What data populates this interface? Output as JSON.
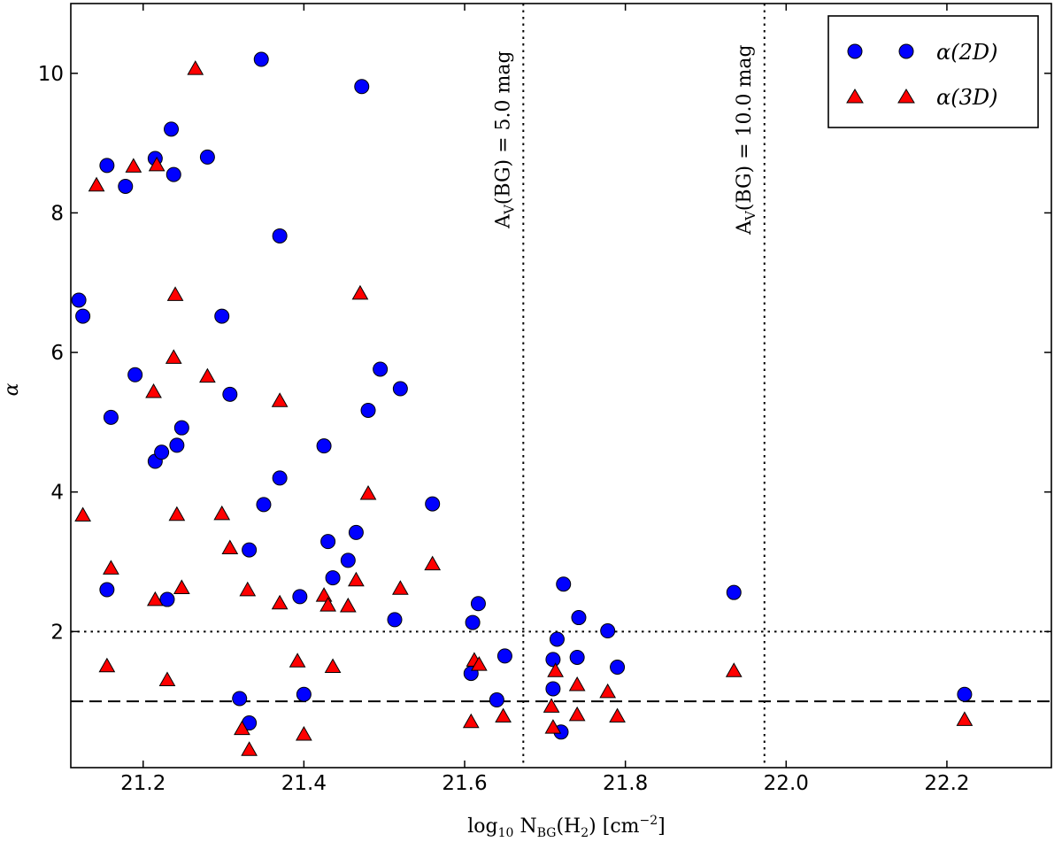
{
  "chart_data": {
    "type": "scatter",
    "title": "",
    "xlabel": "log10 NBG(H2) [cm−2]",
    "ylabel": "α",
    "xlim": [
      21.11,
      22.33
    ],
    "ylim": [
      0.05,
      11.0
    ],
    "x_ticks": [
      "21.2",
      "21.4",
      "21.6",
      "21.8",
      "22.0",
      "22.2"
    ],
    "x_tick_values": [
      21.2,
      21.4,
      21.6,
      21.8,
      22.0,
      22.2
    ],
    "y_ticks": [
      "2",
      "4",
      "6",
      "8",
      "10"
    ],
    "y_tick_values": [
      2,
      4,
      6,
      8,
      10
    ],
    "grid": false,
    "legend_position": "top-right",
    "reference_lines": [
      {
        "orientation": "horizontal",
        "value": 2,
        "style": "dotted"
      },
      {
        "orientation": "horizontal",
        "value": 1,
        "style": "dashed"
      },
      {
        "orientation": "vertical",
        "value": 21.673,
        "style": "dotted",
        "label": "AV(BG) = 5.0 mag"
      },
      {
        "orientation": "vertical",
        "value": 21.973,
        "style": "dotted",
        "label": "AV(BG) = 10.0 mag"
      }
    ],
    "series": [
      {
        "name": "α(2D)",
        "marker": "circle",
        "color": "#0000ff",
        "points": [
          [
            21.12,
            6.75
          ],
          [
            21.125,
            6.52
          ],
          [
            21.155,
            8.68
          ],
          [
            21.155,
            2.6
          ],
          [
            21.16,
            5.07
          ],
          [
            21.178,
            8.38
          ],
          [
            21.19,
            5.68
          ],
          [
            21.215,
            8.78
          ],
          [
            21.215,
            4.44
          ],
          [
            21.223,
            4.57
          ],
          [
            21.23,
            2.46
          ],
          [
            21.235,
            9.2
          ],
          [
            21.238,
            8.55
          ],
          [
            21.242,
            4.67
          ],
          [
            21.248,
            4.92
          ],
          [
            21.28,
            8.8
          ],
          [
            21.298,
            6.52
          ],
          [
            21.308,
            5.4
          ],
          [
            21.32,
            1.04
          ],
          [
            21.332,
            3.17
          ],
          [
            21.332,
            0.69
          ],
          [
            21.347,
            10.2
          ],
          [
            21.35,
            3.82
          ],
          [
            21.37,
            7.67
          ],
          [
            21.37,
            4.2
          ],
          [
            21.395,
            2.5
          ],
          [
            21.4,
            1.1
          ],
          [
            21.425,
            4.66
          ],
          [
            21.43,
            3.29
          ],
          [
            21.436,
            2.77
          ],
          [
            21.455,
            3.02
          ],
          [
            21.465,
            3.42
          ],
          [
            21.472,
            9.81
          ],
          [
            21.48,
            5.17
          ],
          [
            21.495,
            5.76
          ],
          [
            21.513,
            2.17
          ],
          [
            21.52,
            5.48
          ],
          [
            21.56,
            3.83
          ],
          [
            21.608,
            1.4
          ],
          [
            21.61,
            2.13
          ],
          [
            21.617,
            2.4
          ],
          [
            21.64,
            1.02
          ],
          [
            21.65,
            1.65
          ],
          [
            21.71,
            1.18
          ],
          [
            21.71,
            1.6
          ],
          [
            21.715,
            1.89
          ],
          [
            21.72,
            0.56
          ],
          [
            21.723,
            2.68
          ],
          [
            21.74,
            1.63
          ],
          [
            21.742,
            2.2
          ],
          [
            21.778,
            2.01
          ],
          [
            21.79,
            1.49
          ],
          [
            21.935,
            2.56
          ],
          [
            22.222,
            1.1
          ]
        ]
      },
      {
        "name": "α(3D)",
        "marker": "triangle",
        "color": "#ff0000",
        "points": [
          [
            21.125,
            3.66
          ],
          [
            21.142,
            8.39
          ],
          [
            21.155,
            1.5
          ],
          [
            21.16,
            2.9
          ],
          [
            21.188,
            8.66
          ],
          [
            21.213,
            5.43
          ],
          [
            21.215,
            2.45
          ],
          [
            21.217,
            8.68
          ],
          [
            21.23,
            1.3
          ],
          [
            21.238,
            5.92
          ],
          [
            21.24,
            6.82
          ],
          [
            21.242,
            3.67
          ],
          [
            21.248,
            2.62
          ],
          [
            21.265,
            10.06
          ],
          [
            21.28,
            5.65
          ],
          [
            21.298,
            3.68
          ],
          [
            21.308,
            3.19
          ],
          [
            21.323,
            0.6
          ],
          [
            21.33,
            2.59
          ],
          [
            21.332,
            0.3
          ],
          [
            21.37,
            2.4
          ],
          [
            21.37,
            5.3
          ],
          [
            21.392,
            1.57
          ],
          [
            21.4,
            0.52
          ],
          [
            21.425,
            2.51
          ],
          [
            21.43,
            2.37
          ],
          [
            21.436,
            1.49
          ],
          [
            21.455,
            2.36
          ],
          [
            21.465,
            2.73
          ],
          [
            21.47,
            6.84
          ],
          [
            21.48,
            3.97
          ],
          [
            21.52,
            2.61
          ],
          [
            21.56,
            2.96
          ],
          [
            21.608,
            0.7
          ],
          [
            21.612,
            1.58
          ],
          [
            21.618,
            1.52
          ],
          [
            21.648,
            0.78
          ],
          [
            21.708,
            0.92
          ],
          [
            21.71,
            0.62
          ],
          [
            21.713,
            1.43
          ],
          [
            21.74,
            1.23
          ],
          [
            21.74,
            0.8
          ],
          [
            21.778,
            1.13
          ],
          [
            21.79,
            0.78
          ],
          [
            21.935,
            1.43
          ],
          [
            22.222,
            0.73
          ]
        ]
      }
    ]
  },
  "labels": {
    "xlabel_main": "log",
    "xlabel_sub10": "10",
    "xlabel_N": " N",
    "xlabel_subBG": "BG",
    "xlabel_paren": "(H",
    "xlabel_sub2": "2",
    "xlabel_unit": ") [cm",
    "xlabel_sup": "−2",
    "xlabel_close": "]",
    "ylabel": "α",
    "anno1_A": "A",
    "anno1_sub": "V",
    "anno1_rest": "(BG) = 5.0 mag",
    "anno2_A": "A",
    "anno2_sub": "V",
    "anno2_rest": "(BG) = 10.0 mag",
    "legend_2d": "α(2D)",
    "legend_3d": "α(3D)"
  }
}
